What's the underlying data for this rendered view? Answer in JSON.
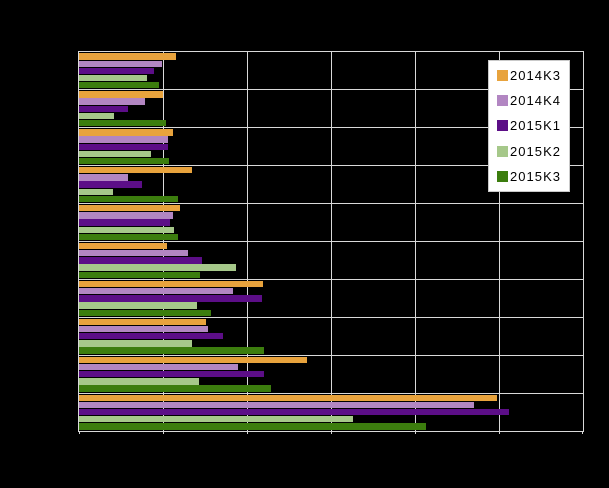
{
  "figure": {
    "background_color": "#000000",
    "plot_background_color": "#000000",
    "gridline_color": "#d9d9d9",
    "frame_color": "#d9d9d9",
    "title_text_visible": false,
    "axis_tick_labels_visible": false,
    "category_labels_visible": false
  },
  "legend": {
    "position": "top-right",
    "background_color": "#ffffff",
    "border_color": "#c9c9c9",
    "text_color": "#000000",
    "entries": [
      {
        "label": "2014K3",
        "color": "#e8a33d"
      },
      {
        "label": "2014K4",
        "color": "#b286c2"
      },
      {
        "label": "2015K1",
        "color": "#5c0e87"
      },
      {
        "label": "2015K2",
        "color": "#a6c88a"
      },
      {
        "label": "2015K3",
        "color": "#3c7d0e"
      }
    ]
  },
  "chart_data": {
    "type": "bar",
    "orientation": "horizontal",
    "note": "Quarterly grouped bar chart. Title, category labels and numeric axis labels are rendered black-on-black and are not visible; bar values are estimated in x-axis gridline units (axis spans 6 equal divisions).",
    "x_axis": {
      "range_units": [
        0,
        6
      ],
      "divisions": 6,
      "gridlines_at_units": [
        1,
        2,
        3,
        4,
        5
      ],
      "tick_labels_visible": false
    },
    "categories_count": 10,
    "categories": [
      "",
      "",
      "",
      "",
      "",
      "",
      "",
      "",
      "",
      ""
    ],
    "series": [
      {
        "name": "2014K3",
        "color": "#e8a33d",
        "values_units": [
          1.15,
          1.0,
          1.12,
          1.34,
          1.2,
          1.05,
          2.19,
          1.51,
          2.71,
          4.98
        ]
      },
      {
        "name": "2014K4",
        "color": "#b286c2",
        "values_units": [
          0.99,
          0.78,
          1.06,
          0.58,
          1.12,
          1.3,
          1.83,
          1.53,
          1.89,
          4.7
        ]
      },
      {
        "name": "2015K1",
        "color": "#5c0e87",
        "values_units": [
          0.89,
          0.58,
          1.06,
          0.75,
          1.08,
          1.47,
          2.18,
          1.71,
          2.2,
          5.12
        ]
      },
      {
        "name": "2015K2",
        "color": "#a6c88a",
        "values_units": [
          0.81,
          0.42,
          0.86,
          0.41,
          1.13,
          1.87,
          1.4,
          1.35,
          1.43,
          3.26
        ]
      },
      {
        "name": "2015K3",
        "color": "#3c7d0e",
        "values_units": [
          0.95,
          1.04,
          1.07,
          1.18,
          1.18,
          1.44,
          1.57,
          2.2,
          2.29,
          4.13
        ]
      }
    ],
    "legend_entries": [
      "2014K3",
      "2014K4",
      "2015K1",
      "2015K2",
      "2015K3"
    ],
    "grid": true
  }
}
